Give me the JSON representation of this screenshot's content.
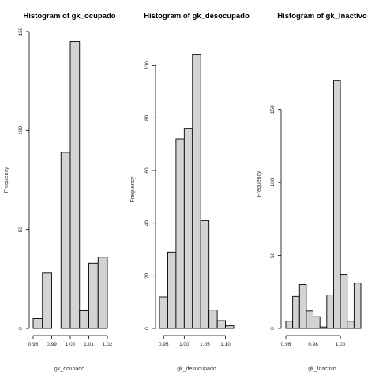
{
  "colors": {
    "bar_fill": "#d3d3d3",
    "bar_stroke": "#000000",
    "background": "#ffffff"
  },
  "chart_data": [
    {
      "type": "bar",
      "title": "Histogram of gk_ocupado",
      "xlabel": "gk_ocupado",
      "ylabel": "Frequency",
      "breaks": [
        0.98,
        0.985,
        0.99,
        0.995,
        1.0,
        1.005,
        1.01,
        1.015,
        1.02
      ],
      "values": [
        5,
        28,
        0,
        89,
        145,
        9,
        33,
        36
      ],
      "xticks": [
        0.98,
        0.99,
        1.0,
        1.01,
        1.02
      ],
      "xtick_labels": [
        "0.98",
        "0.99",
        "1.00",
        "1.01",
        "1.02"
      ],
      "yticks": [
        0,
        50,
        100,
        150
      ],
      "ytick_labels": [
        "0",
        "50",
        "100",
        "150"
      ],
      "xlim": [
        0.98,
        1.02
      ],
      "ylim": [
        0,
        150
      ],
      "grid": false
    },
    {
      "type": "bar",
      "title": "Histogram of gk_desocupado",
      "xlabel": "gk_desocupado",
      "ylabel": "Frequency",
      "breaks": [
        0.94,
        0.96,
        0.98,
        1.0,
        1.02,
        1.04,
        1.06,
        1.08,
        1.1,
        1.12
      ],
      "values": [
        12,
        29,
        72,
        76,
        104,
        41,
        7,
        3,
        1
      ],
      "xticks": [
        0.95,
        1.0,
        1.05,
        1.1
      ],
      "xtick_labels": [
        "0.95",
        "1.00",
        "1.05",
        "1.10"
      ],
      "yticks": [
        0,
        20,
        40,
        60,
        80,
        100
      ],
      "ytick_labels": [
        "0",
        "20",
        "40",
        "60",
        "80",
        "100"
      ],
      "xlim": [
        0.94,
        1.12
      ],
      "ylim": [
        0,
        105
      ],
      "grid": false
    },
    {
      "type": "bar",
      "title": "Histogram of gk_Inactivo",
      "xlabel": "gk_Inactivo",
      "ylabel": "Frequency",
      "breaks": [
        0.96,
        0.965,
        0.97,
        0.975,
        0.98,
        0.985,
        0.99,
        0.995,
        1.0,
        1.005,
        1.01,
        1.015
      ],
      "values": [
        5,
        22,
        30,
        12,
        8,
        1,
        23,
        170,
        37,
        5,
        31
      ],
      "xticks": [
        0.96,
        0.98,
        1.0
      ],
      "xtick_labels": [
        "0.96",
        "0.98",
        "1.00"
      ],
      "yticks": [
        0,
        50,
        100,
        150
      ],
      "ytick_labels": [
        "0",
        "50",
        "100",
        "150"
      ],
      "xlim": [
        0.96,
        1.015
      ],
      "ylim": [
        0,
        172
      ],
      "grid": false
    }
  ]
}
